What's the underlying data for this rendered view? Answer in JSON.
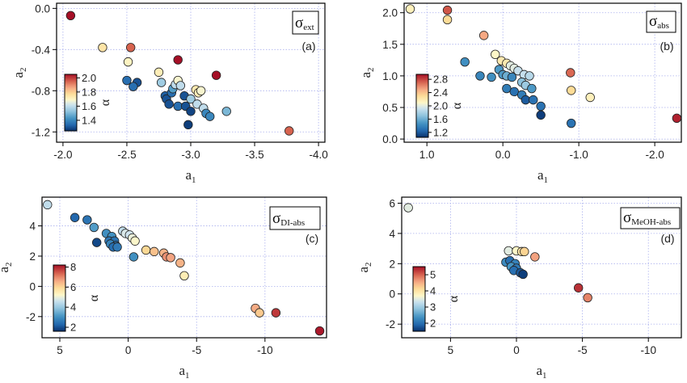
{
  "chart_data": [
    {
      "type": "scatter",
      "panel_letter": "(a)",
      "legend_symbol": "σ",
      "legend_subscript": "ext",
      "xlabel": "a",
      "xlabel_sub": "1",
      "ylabel": "a",
      "ylabel_sub": "2",
      "xlim": [
        -1.95,
        -4.05
      ],
      "ylim": [
        -1.3,
        0.05
      ],
      "xticks": [
        -2.0,
        -2.5,
        -3.0,
        -3.5,
        -4.0
      ],
      "xtick_labels": [
        "-2.0",
        "-2.5",
        "-3.0",
        "-3.5",
        "-4.0"
      ],
      "yticks": [
        0.0,
        -0.4,
        -0.8,
        -1.2
      ],
      "ytick_labels": [
        "0.0",
        "-0.4",
        "-0.8",
        "-1.2"
      ],
      "colorbar": {
        "label": "α",
        "range": [
          1.25,
          2.05
        ],
        "ticks": [
          1.4,
          1.6,
          1.8,
          2.0
        ],
        "tick_labels": [
          "1.4",
          "1.6",
          "1.8",
          "2.0"
        ]
      },
      "points": [
        {
          "x": -2.06,
          "y": -0.07,
          "c": 2.05
        },
        {
          "x": -2.31,
          "y": -0.38,
          "c": 1.75
        },
        {
          "x": -2.53,
          "y": -0.38,
          "c": 1.95
        },
        {
          "x": -2.51,
          "y": -0.52,
          "c": 1.7
        },
        {
          "x": -2.5,
          "y": -0.7,
          "c": 1.35
        },
        {
          "x": -2.58,
          "y": -0.72,
          "c": 1.3
        },
        {
          "x": -2.55,
          "y": -0.76,
          "c": 1.35
        },
        {
          "x": -2.75,
          "y": -0.62,
          "c": 1.72
        },
        {
          "x": -2.77,
          "y": -0.72,
          "c": 1.55
        },
        {
          "x": -2.8,
          "y": -0.85,
          "c": 1.32
        },
        {
          "x": -2.81,
          "y": -0.88,
          "c": 1.3
        },
        {
          "x": -2.83,
          "y": -0.93,
          "c": 1.3
        },
        {
          "x": -2.85,
          "y": -0.82,
          "c": 1.35
        },
        {
          "x": -2.86,
          "y": -0.78,
          "c": 1.45
        },
        {
          "x": -2.88,
          "y": -0.74,
          "c": 1.6
        },
        {
          "x": -2.9,
          "y": -0.7,
          "c": 1.68
        },
        {
          "x": -2.92,
          "y": -0.75,
          "c": 1.6
        },
        {
          "x": -2.9,
          "y": -0.95,
          "c": 1.35
        },
        {
          "x": -2.95,
          "y": -0.85,
          "c": 1.3
        },
        {
          "x": -2.96,
          "y": -0.95,
          "c": 1.3
        },
        {
          "x": -3.0,
          "y": -1.0,
          "c": 1.28
        },
        {
          "x": -2.98,
          "y": -1.13,
          "c": 1.27
        },
        {
          "x": -2.9,
          "y": -0.5,
          "c": 2.05
        },
        {
          "x": -3.0,
          "y": -0.88,
          "c": 1.55
        },
        {
          "x": -3.04,
          "y": -0.79,
          "c": 1.73
        },
        {
          "x": -3.06,
          "y": -0.82,
          "c": 1.72
        },
        {
          "x": -3.08,
          "y": -0.8,
          "c": 1.68
        },
        {
          "x": -3.05,
          "y": -0.93,
          "c": 1.6
        },
        {
          "x": -3.1,
          "y": -0.97,
          "c": 1.6
        },
        {
          "x": -3.12,
          "y": -1.02,
          "c": 1.4
        },
        {
          "x": -3.15,
          "y": -1.05,
          "c": 1.4
        },
        {
          "x": -3.2,
          "y": -0.65,
          "c": 2.05
        },
        {
          "x": -3.28,
          "y": -1.0,
          "c": 1.5
        },
        {
          "x": -3.77,
          "y": -1.19,
          "c": 1.95
        }
      ]
    },
    {
      "type": "scatter",
      "panel_letter": "(b)",
      "legend_symbol": "σ",
      "legend_subscript": "abs",
      "xlabel": "a",
      "xlabel_sub": "1",
      "ylabel": "a",
      "ylabel_sub": "2",
      "xlim": [
        1.3,
        -2.35
      ],
      "ylim": [
        -0.05,
        2.15
      ],
      "xticks": [
        1.0,
        0.0,
        -1.0,
        -2.0
      ],
      "xtick_labels": [
        "1.0",
        "0.0",
        "-1.0",
        "-2.0"
      ],
      "yticks": [
        0.0,
        0.5,
        1.0,
        1.5,
        2.0
      ],
      "ytick_labels": [
        "0.0",
        "0.5",
        "1.0",
        "1.5",
        "2.0"
      ],
      "colorbar": {
        "label": "α",
        "range": [
          1.05,
          2.95
        ],
        "ticks": [
          1.2,
          1.6,
          2.0,
          2.4,
          2.8
        ],
        "tick_labels": [
          "1.2",
          "1.6",
          "2.0",
          "2.4",
          "2.8"
        ]
      },
      "points": [
        {
          "x": 1.22,
          "y": 2.06,
          "c": 2.15
        },
        {
          "x": 0.73,
          "y": 2.04,
          "c": 2.75
        },
        {
          "x": 0.73,
          "y": 1.89,
          "c": 2.3
        },
        {
          "x": 0.25,
          "y": 1.64,
          "c": 2.5
        },
        {
          "x": 0.5,
          "y": 1.22,
          "c": 1.45
        },
        {
          "x": 0.1,
          "y": 1.34,
          "c": 2.1
        },
        {
          "x": 0.02,
          "y": 1.24,
          "c": 2.2
        },
        {
          "x": -0.05,
          "y": 1.2,
          "c": 2.2
        },
        {
          "x": -0.1,
          "y": 1.16,
          "c": 2.0
        },
        {
          "x": -0.15,
          "y": 1.12,
          "c": 2.0
        },
        {
          "x": -0.2,
          "y": 1.08,
          "c": 1.9
        },
        {
          "x": -0.28,
          "y": 1.02,
          "c": 1.9
        },
        {
          "x": -0.35,
          "y": 1.0,
          "c": 1.85
        },
        {
          "x": 0.05,
          "y": 1.1,
          "c": 1.5
        },
        {
          "x": 0.0,
          "y": 1.02,
          "c": 1.5
        },
        {
          "x": -0.05,
          "y": 1.0,
          "c": 1.6
        },
        {
          "x": -0.12,
          "y": 0.98,
          "c": 1.4
        },
        {
          "x": 0.3,
          "y": 1.0,
          "c": 1.4
        },
        {
          "x": 0.15,
          "y": 0.98,
          "c": 1.45
        },
        {
          "x": -0.25,
          "y": 0.9,
          "c": 1.7
        },
        {
          "x": -0.3,
          "y": 0.85,
          "c": 1.75
        },
        {
          "x": -0.38,
          "y": 0.8,
          "c": 1.5
        },
        {
          "x": -0.05,
          "y": 0.8,
          "c": 1.35
        },
        {
          "x": -0.15,
          "y": 0.75,
          "c": 1.3
        },
        {
          "x": -0.25,
          "y": 0.7,
          "c": 1.35
        },
        {
          "x": -0.3,
          "y": 0.62,
          "c": 1.2
        },
        {
          "x": -0.4,
          "y": 0.62,
          "c": 1.3
        },
        {
          "x": -0.5,
          "y": 0.52,
          "c": 1.3
        },
        {
          "x": -0.5,
          "y": 0.38,
          "c": 1.1
        },
        {
          "x": -0.89,
          "y": 1.05,
          "c": 2.7
        },
        {
          "x": -0.9,
          "y": 0.77,
          "c": 2.3
        },
        {
          "x": -0.9,
          "y": 0.25,
          "c": 1.3
        },
        {
          "x": -1.15,
          "y": 0.66,
          "c": 2.15
        },
        {
          "x": -2.29,
          "y": 0.33,
          "c": 2.9
        }
      ]
    },
    {
      "type": "scatter",
      "panel_letter": "(c)",
      "legend_symbol": "σ",
      "legend_subscript": "DI-abs",
      "xlabel": "a",
      "xlabel_sub": "1",
      "ylabel": "a",
      "ylabel_sub": "2",
      "xlim": [
        6.3,
        -14.5
      ],
      "ylim": [
        -3.4,
        5.9
      ],
      "xticks": [
        5,
        0,
        -5,
        -10
      ],
      "xtick_labels": [
        "5",
        "0",
        "-5",
        "-10"
      ],
      "yticks": [
        4,
        2,
        0,
        -2
      ],
      "ytick_labels": [
        "4",
        "2",
        "0",
        "-2"
      ],
      "colorbar": {
        "label": "α",
        "range": [
          1.6,
          8.2
        ],
        "ticks": [
          2,
          4,
          6,
          8
        ],
        "tick_labels": [
          "2",
          "4",
          "6",
          "8"
        ]
      },
      "points": [
        {
          "x": 5.9,
          "y": 5.4,
          "c": 4.5
        },
        {
          "x": 3.9,
          "y": 4.55,
          "c": 2.3
        },
        {
          "x": 3.0,
          "y": 4.4,
          "c": 2.5
        },
        {
          "x": 2.5,
          "y": 3.9,
          "c": 3.2
        },
        {
          "x": 1.6,
          "y": 3.5,
          "c": 3.0
        },
        {
          "x": 1.2,
          "y": 3.3,
          "c": 3.0
        },
        {
          "x": 1.4,
          "y": 3.0,
          "c": 2.6
        },
        {
          "x": 1.0,
          "y": 3.0,
          "c": 2.5
        },
        {
          "x": 1.3,
          "y": 2.8,
          "c": 2.8
        },
        {
          "x": 0.9,
          "y": 2.7,
          "c": 2.5
        },
        {
          "x": 1.1,
          "y": 2.6,
          "c": 2.4
        },
        {
          "x": 0.8,
          "y": 2.6,
          "c": 2.6
        },
        {
          "x": 2.3,
          "y": 2.9,
          "c": 1.9
        },
        {
          "x": 0.4,
          "y": 3.65,
          "c": 4.5
        },
        {
          "x": 0.2,
          "y": 3.5,
          "c": 4.8
        },
        {
          "x": -0.1,
          "y": 3.4,
          "c": 4.7
        },
        {
          "x": -0.3,
          "y": 3.2,
          "c": 5.0
        },
        {
          "x": -0.5,
          "y": 3.0,
          "c": 5.2
        },
        {
          "x": -0.4,
          "y": 1.95,
          "c": 3.0
        },
        {
          "x": -1.3,
          "y": 2.4,
          "c": 6.0
        },
        {
          "x": -1.9,
          "y": 2.3,
          "c": 6.3
        },
        {
          "x": -2.6,
          "y": 2.2,
          "c": 6.5
        },
        {
          "x": -2.8,
          "y": 1.95,
          "c": 6.9
        },
        {
          "x": -3.1,
          "y": 1.9,
          "c": 6.7
        },
        {
          "x": -3.8,
          "y": 1.55,
          "c": 6.5
        },
        {
          "x": -4.1,
          "y": 0.7,
          "c": 5.5
        },
        {
          "x": -9.3,
          "y": -1.45,
          "c": 6.6
        },
        {
          "x": -9.6,
          "y": -1.75,
          "c": 6.2
        },
        {
          "x": -10.8,
          "y": -1.75,
          "c": 7.8
        },
        {
          "x": -14.0,
          "y": -2.95,
          "c": 8.1
        }
      ]
    },
    {
      "type": "scatter",
      "panel_letter": "(d)",
      "legend_symbol": "σ",
      "legend_subscript": "MeOH-abs",
      "xlabel": "a",
      "xlabel_sub": "1",
      "ylabel": "a",
      "ylabel_sub": "2",
      "xlim": [
        8.7,
        -12.5
      ],
      "ylim": [
        -2.9,
        6.4
      ],
      "xticks": [
        5,
        0,
        -5,
        -10
      ],
      "xtick_labels": [
        "5",
        "0",
        "-5",
        "-10"
      ],
      "yticks": [
        6,
        4,
        2,
        0,
        -2
      ],
      "ytick_labels": [
        "6",
        "4",
        "2",
        "0",
        "-2"
      ],
      "colorbar": {
        "label": "α",
        "range": [
          1.5,
          5.5
        ],
        "ticks": [
          2,
          3,
          4,
          5
        ],
        "tick_labels": [
          "2",
          "3",
          "4",
          "5"
        ]
      },
      "points": [
        {
          "x": 8.2,
          "y": 5.7,
          "c": 3.5
        },
        {
          "x": 0.6,
          "y": 2.85,
          "c": 3.5
        },
        {
          "x": 0.0,
          "y": 2.85,
          "c": 3.7
        },
        {
          "x": -0.4,
          "y": 2.8,
          "c": 4.0
        },
        {
          "x": -0.6,
          "y": 2.8,
          "c": 4.2
        },
        {
          "x": -1.4,
          "y": 2.45,
          "c": 4.6
        },
        {
          "x": 0.8,
          "y": 2.1,
          "c": 2.3
        },
        {
          "x": 0.3,
          "y": 1.9,
          "c": 2.5
        },
        {
          "x": 0.5,
          "y": 2.2,
          "c": 2.0
        },
        {
          "x": 0.1,
          "y": 2.0,
          "c": 2.2
        },
        {
          "x": 0.4,
          "y": 1.8,
          "c": 2.4
        },
        {
          "x": 0.0,
          "y": 1.7,
          "c": 2.1
        },
        {
          "x": 0.2,
          "y": 1.55,
          "c": 2.0
        },
        {
          "x": -0.3,
          "y": 1.4,
          "c": 1.8
        },
        {
          "x": -0.5,
          "y": 1.3,
          "c": 1.6
        },
        {
          "x": -4.7,
          "y": 0.4,
          "c": 5.3
        },
        {
          "x": -5.4,
          "y": -0.25,
          "c": 4.8
        }
      ]
    }
  ]
}
